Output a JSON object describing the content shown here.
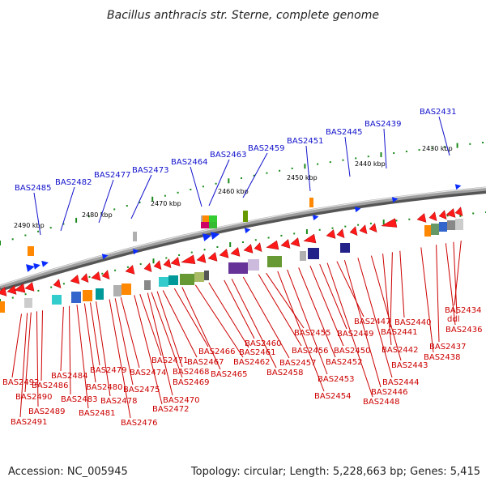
{
  "title": "Bacillus anthracis str. Sterne, complete genome",
  "footer": {
    "accession": "Accession: NC_005945",
    "summary": "Topology: circular; Length: 5,228,663 bp; Genes: 5,415"
  },
  "colors": {
    "forward_label": "#1111cc",
    "reverse_label": "#cc0000",
    "forward_arrow": "#0a2cff",
    "reverse_arrow": "#ff1a1a",
    "backbone": "#808080",
    "tick": "#1a8a1a"
  },
  "kbp_ticks": [
    "2490 kbp",
    "2480 kbp",
    "2470 kbp",
    "2460 kbp",
    "2450 kbp",
    "2440 kbp",
    "2430 kbp"
  ],
  "forward_genes": [
    "BAS2485",
    "BAS2482",
    "BAS2477",
    "BAS2473",
    "BAS2464",
    "BAS2463",
    "BAS2459",
    "BAS2451",
    "BAS2445",
    "BAS2439",
    "BAS2431"
  ],
  "reverse_genes": [
    "BAS2492",
    "BAS2491",
    "BAS2490",
    "BAS2489",
    "BAS2486",
    "BAS2484",
    "BAS2483",
    "BAS2481",
    "BAS2480",
    "BAS2479",
    "BAS2478",
    "BAS2476",
    "BAS2475",
    "BAS2474",
    "BAS2472",
    "BAS2471",
    "BAS2470",
    "BAS2469",
    "BAS2468",
    "BAS2467",
    "BAS2466",
    "BAS2465",
    "BAS2462",
    "BAS2461",
    "BAS2460",
    "BAS2458",
    "BAS2457",
    "BAS2456",
    "BAS2455",
    "BAS2454",
    "BAS2453",
    "BAS2452",
    "BAS2450",
    "BAS2449",
    "BAS2448",
    "BAS2447",
    "BAS2446",
    "BAS2444",
    "BAS2443",
    "BAS2442",
    "BAS2441",
    "BAS2440",
    "BAS2438",
    "BAS2437",
    "BAS2436",
    "ddl",
    "BAS2434"
  ]
}
